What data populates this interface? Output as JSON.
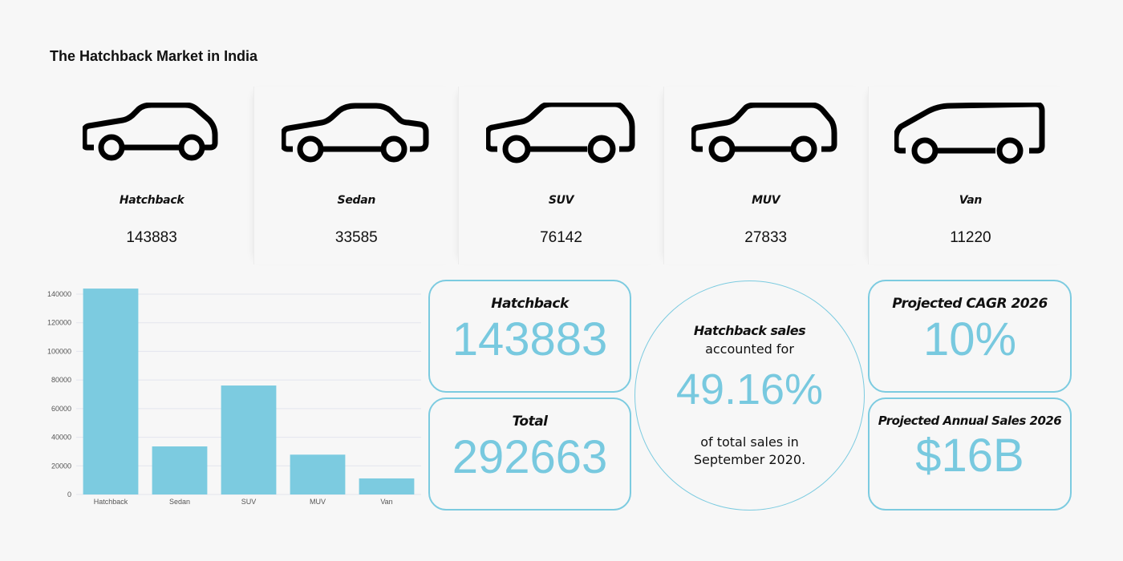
{
  "title": "The Hatchback Market in India",
  "categories": [
    {
      "label": "Hatchback",
      "value": "143883",
      "icon": "hatchback-car-icon"
    },
    {
      "label": "Sedan",
      "value": "33585",
      "icon": "sedan-car-icon"
    },
    {
      "label": "SUV",
      "value": "76142",
      "icon": "suv-car-icon"
    },
    {
      "label": "MUV",
      "value": "27833",
      "icon": "muv-car-icon"
    },
    {
      "label": "Van",
      "value": "11220",
      "icon": "van-icon"
    }
  ],
  "stats": {
    "hatchback": {
      "label": "Hatchback",
      "value": "143883"
    },
    "total": {
      "label": "Total",
      "value": "292663"
    },
    "share": {
      "line1": "Hatchback sales",
      "line2": "accounted for",
      "value": "49.16%",
      "line3": "of total sales in",
      "line4": "September 2020."
    },
    "cagr": {
      "label": "Projected CAGR 2026",
      "value": "10%"
    },
    "annual": {
      "label": "Projected Annual Sales 2026",
      "value": "$16B"
    }
  },
  "colors": {
    "accent": "#78c9df",
    "bar": "#7ccbe0",
    "grid": "#e3e5ee"
  },
  "chart_data": {
    "type": "bar",
    "title": "",
    "categories": [
      "Hatchback",
      "Sedan",
      "SUV",
      "MUV",
      "Van"
    ],
    "values": [
      143883,
      33585,
      76142,
      27833,
      11220
    ],
    "xlabel": "",
    "ylabel": "",
    "ylim": [
      0,
      140000
    ],
    "yticks": [
      0,
      20000,
      40000,
      60000,
      80000,
      100000,
      120000,
      140000
    ],
    "grid": true,
    "legend": null
  }
}
